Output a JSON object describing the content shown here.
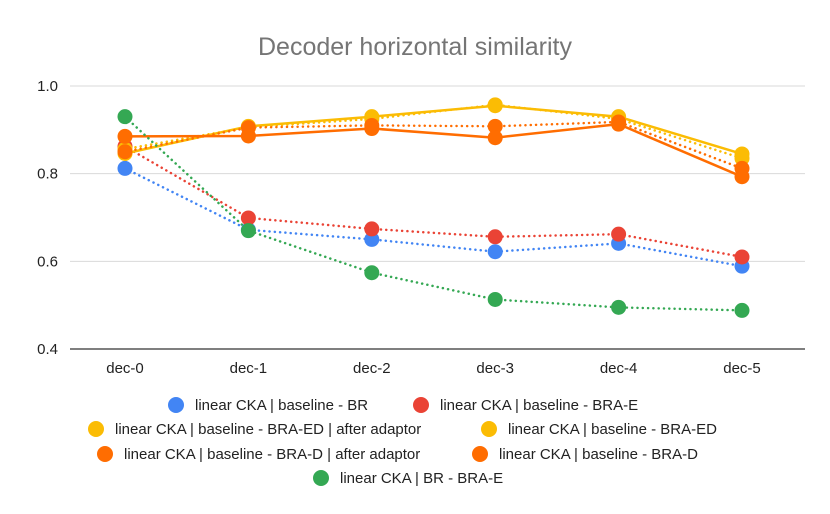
{
  "chart_data": {
    "type": "line",
    "title": "Decoder horizontal similarity",
    "xlabel": "",
    "ylabel": "",
    "categories": [
      "dec-0",
      "dec-1",
      "dec-2",
      "dec-3",
      "dec-4",
      "dec-5"
    ],
    "ylim": [
      0.4,
      1.0
    ],
    "yticks": [
      "0.4",
      "0.6",
      "0.8",
      "1.0"
    ],
    "grid": true,
    "legend_position": "bottom",
    "series": [
      {
        "name": "linear CKA | baseline - BR",
        "color": "#4285F4",
        "style": "dotted",
        "values": [
          0.812,
          0.672,
          0.65,
          0.622,
          0.641,
          0.589
        ]
      },
      {
        "name": "linear CKA | baseline - BRA-E",
        "color": "#EA4335",
        "style": "dotted",
        "values": [
          0.862,
          0.699,
          0.674,
          0.656,
          0.662,
          0.61
        ]
      },
      {
        "name": "linear CKA | baseline - BRA-ED | after adaptor",
        "color": "#FBBC04",
        "style": "dotted",
        "values": [
          0.856,
          0.906,
          0.925,
          0.957,
          0.925,
          0.835
        ]
      },
      {
        "name": "linear CKA | baseline - BRA-ED",
        "color": "#FBBC04",
        "style": "solid",
        "values": [
          0.846,
          0.908,
          0.93,
          0.955,
          0.93,
          0.845
        ]
      },
      {
        "name": "linear CKA | baseline - BRA-D | after adaptor",
        "color": "#FF6D01",
        "style": "dotted",
        "values": [
          0.85,
          0.905,
          0.91,
          0.908,
          0.918,
          0.812
        ]
      },
      {
        "name": "linear CKA | baseline - BRA-D",
        "color": "#FF6D01",
        "style": "solid",
        "values": [
          0.885,
          0.886,
          0.903,
          0.882,
          0.913,
          0.793
        ]
      },
      {
        "name": "linear CKA | BR - BRA-E",
        "color": "#34A853",
        "style": "dotted",
        "values": [
          0.93,
          0.67,
          0.574,
          0.513,
          0.495,
          0.488
        ]
      }
    ]
  }
}
